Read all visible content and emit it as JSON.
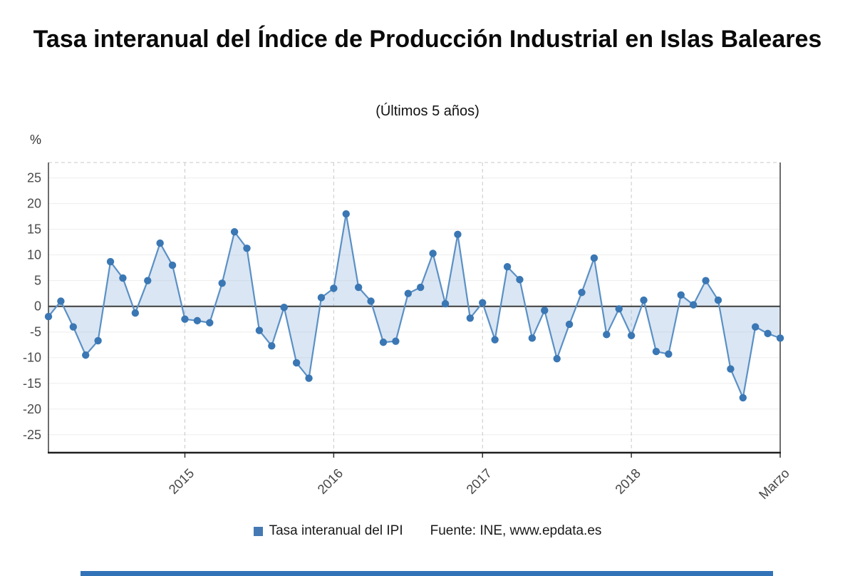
{
  "title": "Tasa interanual del Índice de Producción Industrial en Islas Baleares",
  "subtitle": "(Últimos 5 años)",
  "y_axis_unit": "%",
  "legend": {
    "series_label": "Tasa interanual del IPI",
    "marker_color": "#4579b4"
  },
  "source": "Fuente: INE, www.epdata.es",
  "brand_bar_color": "#3273b8",
  "chart_data": {
    "type": "line",
    "title": "Tasa interanual del Índice de Producción Industrial en Islas Baleares",
    "subtitle": "(Últimos 5 años)",
    "ylabel": "%",
    "ylim": [
      -28.5,
      28
    ],
    "y_ticks": [
      25,
      20,
      15,
      10,
      5,
      0,
      -5,
      -10,
      -15,
      -20,
      -25
    ],
    "x_ticks": [
      {
        "label": "2015",
        "index": 11,
        "gridline": true
      },
      {
        "label": "2016",
        "index": 23,
        "gridline": true
      },
      {
        "label": "2017",
        "index": 35,
        "gridline": true
      },
      {
        "label": "2018",
        "index": 47,
        "gridline": true
      },
      {
        "label": "Marzo",
        "index": 59,
        "gridline": false
      }
    ],
    "series": [
      {
        "name": "Tasa interanual del IPI",
        "values": [
          -2,
          1,
          -4,
          -9.5,
          -6.7,
          8.7,
          5.5,
          -1.3,
          5,
          12.3,
          8,
          -2.5,
          -2.8,
          -3.2,
          4.5,
          14.5,
          11.3,
          -4.7,
          -7.7,
          -0.2,
          -11,
          -14,
          1.7,
          3.5,
          18,
          3.7,
          1,
          -7,
          -6.8,
          2.5,
          3.7,
          10.3,
          0.5,
          14,
          -2.3,
          0.7,
          -6.5,
          7.7,
          5.2,
          -6.2,
          -0.8,
          -10.2,
          -3.5,
          2.7,
          9.4,
          -5.5,
          -0.5,
          -5.7,
          1.2,
          -8.8,
          -9.3,
          2.2,
          0.3,
          5,
          1.2,
          -12.2,
          -17.8,
          -4,
          -5.3,
          -6.2
        ]
      }
    ],
    "colors": {
      "line": "#5b90c5",
      "marker": "#3a77b4",
      "area": "rgba(148,184,220,0.35)"
    },
    "legend_position": "bottom",
    "grid": "vertical dashed gridlines at year ticks; light horizontal gridlines; dark zero line"
  }
}
